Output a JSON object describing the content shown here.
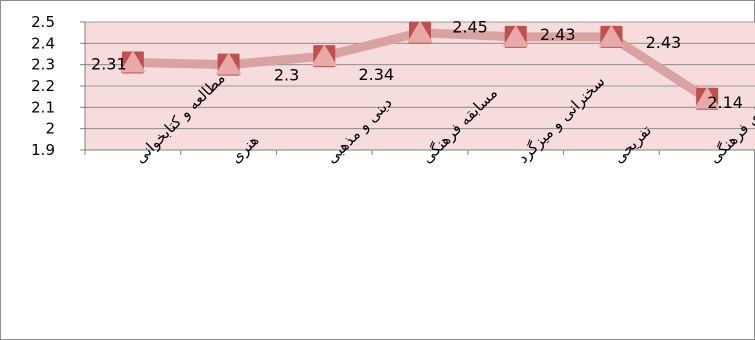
{
  "chart_data": {
    "type": "line",
    "categories": [
      "مطالعه و کتابخوانی",
      "هنری",
      "دینی و مذهبی",
      "مسابقه فرهنگی",
      "سخنرانی و میزگرد",
      "تفریحی",
      "نهادهای فرهنگی"
    ],
    "series": [
      {
        "values": [
          2.31,
          2.3,
          2.34,
          2.45,
          2.43,
          2.43,
          2.14
        ],
        "color": "#e8a9a9",
        "marker_color": "#c0504d"
      }
    ],
    "data_labels": [
      "2.31",
      "2.3",
      "2.34",
      "2.45",
      "2.43",
      "2.43",
      "2.14"
    ],
    "ylim": [
      1.9,
      2.5
    ],
    "yticks": [
      "2.5",
      "2.4",
      "2.3",
      "2.2",
      "2.1",
      "2",
      "1.9"
    ],
    "plot_background": "#f6dcdc",
    "gridlines": true,
    "legend": "none"
  }
}
